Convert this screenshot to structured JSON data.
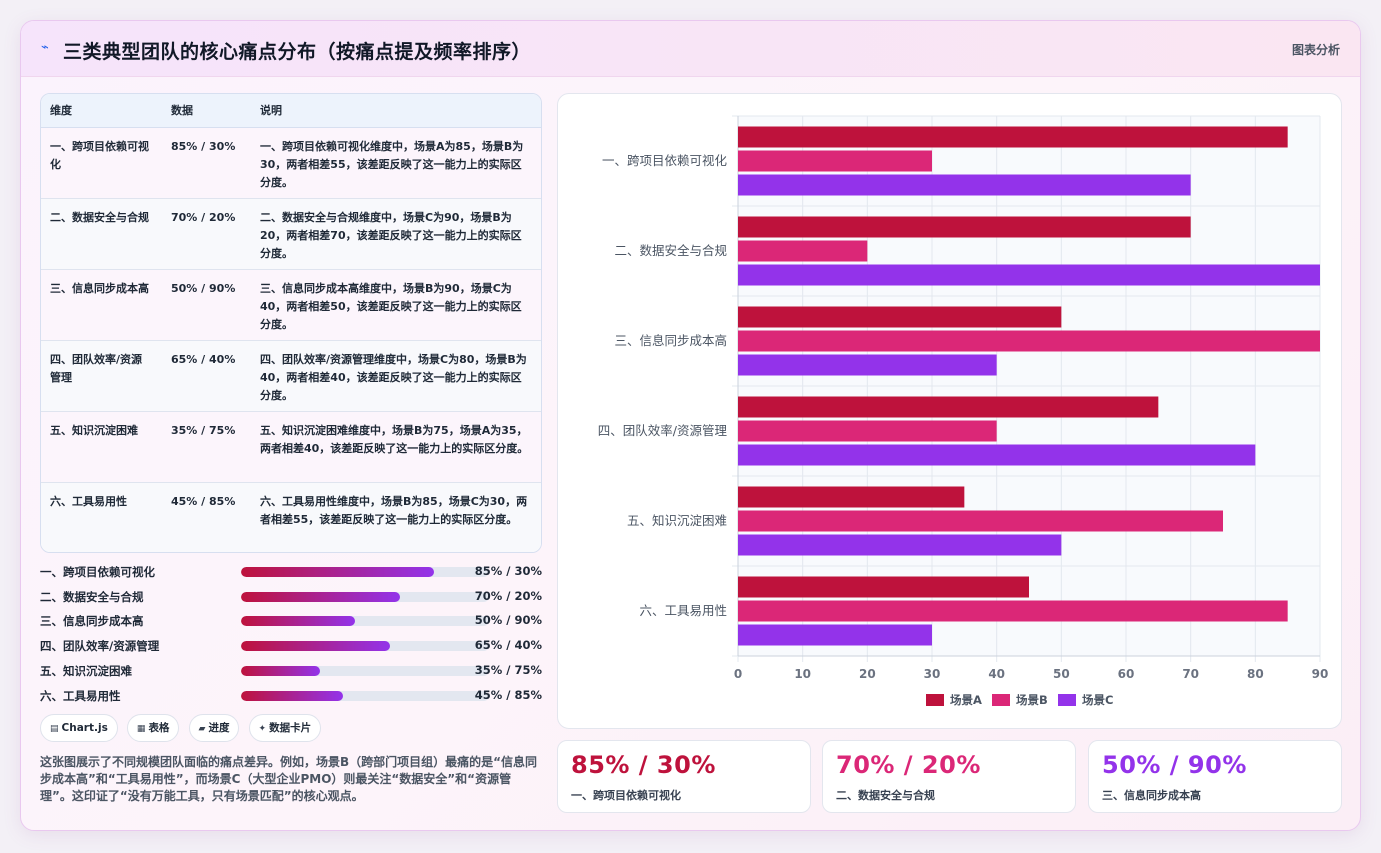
{
  "header": {
    "title": "三类典型团队的核心痛点分布（按痛点提及频率排序）",
    "tag": "图表分析",
    "icon": "trend-icon"
  },
  "colors": {
    "a": "#be123c",
    "b": "#db2777",
    "c": "#9333ea"
  },
  "table": {
    "headers": [
      "维度",
      "数据",
      "说明"
    ],
    "rows": [
      {
        "dim": "一、跨项目依赖可视化",
        "val": "85% / 30%",
        "desc": "一、跨项目依赖可视化维度中，场景A为85，场景B为30，两者相差55，该差距反映了这一能力上的实际区分度。"
      },
      {
        "dim": "二、数据安全与合规",
        "val": "70% / 20%",
        "desc": "二、数据安全与合规维度中，场景C为90，场景B为20，两者相差70，该差距反映了这一能力上的实际区分度。"
      },
      {
        "dim": "三、信息同步成本高",
        "val": "50% / 90%",
        "desc": "三、信息同步成本高维度中，场景B为90，场景C为40，两者相差50，该差距反映了这一能力上的实际区分度。"
      },
      {
        "dim": "四、团队效率/资源管理",
        "val": "65% / 40%",
        "desc": "四、团队效率/资源管理维度中，场景C为80，场景B为40，两者相差40，该差距反映了这一能力上的实际区分度。"
      },
      {
        "dim": "五、知识沉淀困难",
        "val": "35% / 75%",
        "desc": "五、知识沉淀困难维度中，场景B为75，场景A为35，两者相差40，该差距反映了这一能力上的实际区分度。"
      },
      {
        "dim": "六、工具易用性",
        "val": "45% / 85%",
        "desc": "六、工具易用性维度中，场景B为85，场景C为30，两者相差55，该差距反映了这一能力上的实际区分度。"
      }
    ]
  },
  "progress": [
    {
      "label": "一、跨项目依赖可视化",
      "value": "85% / 30%",
      "fill": 0.78
    },
    {
      "label": "二、数据安全与合规",
      "value": "70% / 20%",
      "fill": 0.64
    },
    {
      "label": "三、信息同步成本高",
      "value": "50% / 90%",
      "fill": 0.46
    },
    {
      "label": "四、团队效率/资源管理",
      "value": "65% / 40%",
      "fill": 0.6
    },
    {
      "label": "五、知识沉淀困难",
      "value": "35% / 75%",
      "fill": 0.32
    },
    {
      "label": "六、工具易用性",
      "value": "45% / 85%",
      "fill": 0.41
    }
  ],
  "chips": [
    {
      "icon": "chart-icon",
      "label": "Chart.js"
    },
    {
      "icon": "table-icon",
      "label": "表格"
    },
    {
      "icon": "progress-icon",
      "label": "进度"
    },
    {
      "icon": "sparkle-icon",
      "label": "数据卡片"
    }
  ],
  "summary": "这张图展示了不同规模团队面临的痛点差异。例如，场景B（跨部门项目组）最痛的是“信息同步成本高”和“工具易用性”，而场景C（大型企业PMO）则最关注“数据安全”和“资源管理”。这印证了“没有万能工具，只有场景匹配”的核心观点。",
  "stats": [
    {
      "value": "85% / 30%",
      "label": "一、跨项目依赖可视化",
      "color": "#be123c"
    },
    {
      "value": "70% / 20%",
      "label": "二、数据安全与合规",
      "color": "#db2777"
    },
    {
      "value": "50% / 90%",
      "label": "三、信息同步成本高",
      "color": "#9333ea"
    }
  ],
  "chart_data": {
    "type": "bar",
    "orientation": "horizontal",
    "categories": [
      "一、跨项目依赖可视化",
      "二、数据安全与合规",
      "三、信息同步成本高",
      "四、团队效率/资源管理",
      "五、知识沉淀困难",
      "六、工具易用性"
    ],
    "series": [
      {
        "name": "场景A",
        "values": [
          85,
          70,
          50,
          65,
          35,
          45
        ]
      },
      {
        "name": "场景B",
        "values": [
          30,
          20,
          90,
          40,
          75,
          85
        ]
      },
      {
        "name": "场景C",
        "values": [
          70,
          90,
          40,
          80,
          50,
          30
        ]
      }
    ],
    "xlim": [
      0,
      90
    ],
    "xticks": [
      0,
      10,
      20,
      30,
      40,
      50,
      60,
      70,
      80,
      90
    ],
    "grid": true,
    "legend": "bottom"
  }
}
